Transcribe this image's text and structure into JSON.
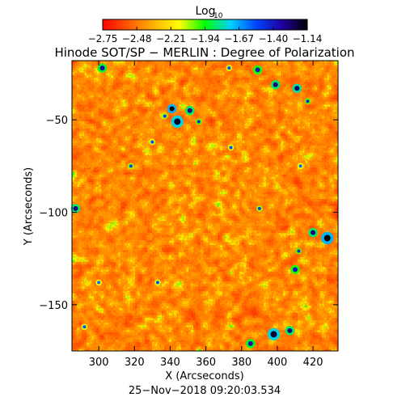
{
  "chart_data": {
    "type": "heatmap",
    "title": "Hinode SOT/SP − MERLIN : Degree of Polarization",
    "xlabel": "X (Arcseconds)",
    "ylabel": "Y (Arcseconds)",
    "colorbar": {
      "label_base": "Log",
      "label_sub": "10",
      "ticks": [
        "−2.75",
        "−2.48",
        "−2.21",
        "−1.94",
        "−1.67",
        "−1.40",
        "−1.14"
      ],
      "range": [
        -2.75,
        -1.14
      ],
      "colors": [
        "#ff0000",
        "#ff5a00",
        "#ffb400",
        "#ffff00",
        "#00ff00",
        "#00d0ff",
        "#0044ff",
        "#2000a0",
        "#000000"
      ]
    },
    "x_ticks": [
      300,
      320,
      340,
      360,
      380,
      400,
      420
    ],
    "y_ticks": [
      -50,
      -100,
      -150
    ],
    "xlim": [
      285,
      434
    ],
    "ylim": [
      -175,
      -18
    ],
    "grid": false,
    "timestamp": "25−Nov−2018 09:20:03.534",
    "strong_patches": [
      {
        "x": 341,
        "y": -44,
        "r": 3,
        "v": -1.14
      },
      {
        "x": 344,
        "y": -51,
        "r": 4,
        "v": -1.2
      },
      {
        "x": 351,
        "y": -45,
        "r": 3,
        "v": -1.3
      },
      {
        "x": 302,
        "y": -22,
        "r": 3,
        "v": -1.35
      },
      {
        "x": 389,
        "y": -23,
        "r": 3,
        "v": -1.4
      },
      {
        "x": 399,
        "y": -31,
        "r": 3,
        "v": -1.3
      },
      {
        "x": 411,
        "y": -33,
        "r": 3,
        "v": -1.25
      },
      {
        "x": 417,
        "y": -40,
        "r": 2,
        "v": -1.45
      },
      {
        "x": 287,
        "y": -98,
        "r": 3,
        "v": -1.3
      },
      {
        "x": 428,
        "y": -114,
        "r": 4,
        "v": -1.14
      },
      {
        "x": 420,
        "y": -111,
        "r": 3,
        "v": -1.3
      },
      {
        "x": 410,
        "y": -131,
        "r": 3,
        "v": -1.4
      },
      {
        "x": 412,
        "y": -121,
        "r": 2,
        "v": -1.45
      },
      {
        "x": 398,
        "y": -166,
        "r": 4,
        "v": -1.2
      },
      {
        "x": 407,
        "y": -164,
        "r": 3,
        "v": -1.3
      },
      {
        "x": 385,
        "y": -171,
        "r": 3,
        "v": -1.35
      },
      {
        "x": 390,
        "y": -98,
        "r": 2,
        "v": -1.5
      },
      {
        "x": 374,
        "y": -65,
        "r": 2,
        "v": -1.55
      },
      {
        "x": 356,
        "y": -51,
        "r": 2,
        "v": -1.45
      },
      {
        "x": 318,
        "y": -75,
        "r": 2,
        "v": -1.5
      },
      {
        "x": 292,
        "y": -162,
        "r": 2,
        "v": -1.55
      },
      {
        "x": 333,
        "y": -138,
        "r": 2,
        "v": -1.55
      },
      {
        "x": 300,
        "y": -138,
        "r": 2,
        "v": -1.6
      },
      {
        "x": 373,
        "y": -22,
        "r": 2,
        "v": -1.55
      },
      {
        "x": 413,
        "y": -75,
        "r": 2,
        "v": -1.6
      },
      {
        "x": 330,
        "y": -62,
        "r": 2,
        "v": -1.55
      },
      {
        "x": 337,
        "y": -48,
        "r": 2,
        "v": -1.5
      }
    ]
  }
}
